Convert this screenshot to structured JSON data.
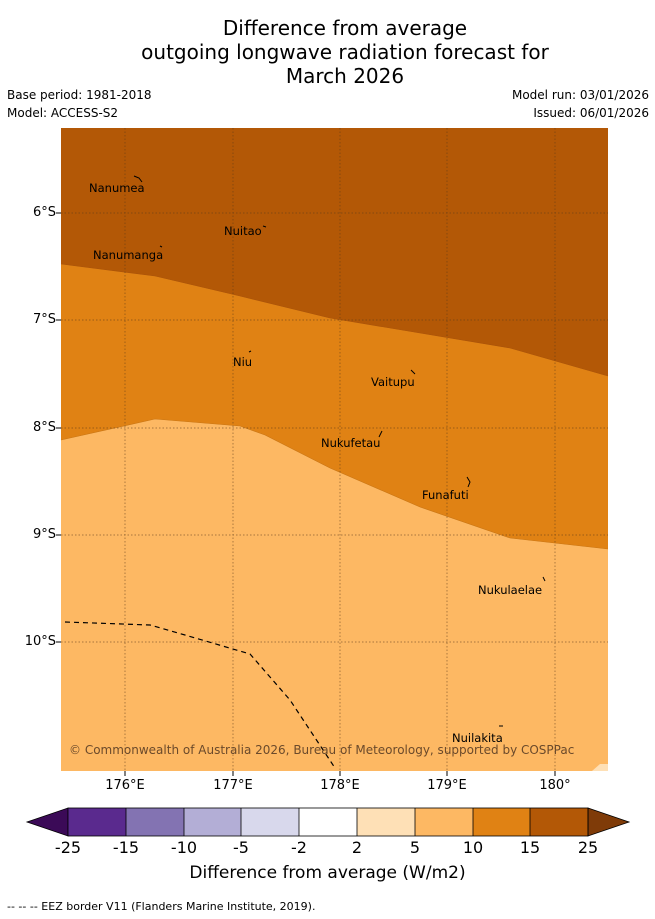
{
  "title": {
    "line1": "Difference from average",
    "line2": "outgoing longwave radiation forecast for",
    "line3": "March 2026"
  },
  "meta": {
    "base_period": "Base period: 1981-2018",
    "model": "Model: ACCESS-S2",
    "model_run": "Model run: 03/01/2026",
    "issued": "Issued: 06/01/2026"
  },
  "axes": {
    "lat_labels": [
      "6°S",
      "7°S",
      "8°S",
      "9°S",
      "10°S"
    ],
    "lon_labels": [
      "176°E",
      "177°E",
      "178°E",
      "179°E",
      "180°"
    ]
  },
  "places": [
    "Nanumea",
    "Nuitao",
    "Nanumanga",
    "Niu",
    "Vaitupu",
    "Nukufetau",
    "Funafuti",
    "Nukulaelae",
    "Nuilakita"
  ],
  "copyright": "© Commonwealth of Australia 2026, Bureau of Meteorology, supported by COSPPac",
  "colorbar": {
    "ticks": [
      "-25",
      "-15",
      "-10",
      "-5",
      "-2",
      "2",
      "5",
      "10",
      "15",
      "25"
    ],
    "title": "Difference from average (W/m2)",
    "colors": {
      "below_min": "#3b0a57",
      "b1": "#5a2a8e",
      "b2": "#8373b2",
      "b3": "#b3aed6",
      "b4": "#d8d8ec",
      "b5": "#ffffff",
      "b6": "#fee0b6",
      "b7": "#fdb863",
      "b8": "#e08214",
      "b9": "#b35806",
      "above_max": "#7f3b08"
    }
  },
  "legend": {
    "eez": "-- -- -- EEZ border V11 (Flanders Marine Institute, 2019)."
  }
}
